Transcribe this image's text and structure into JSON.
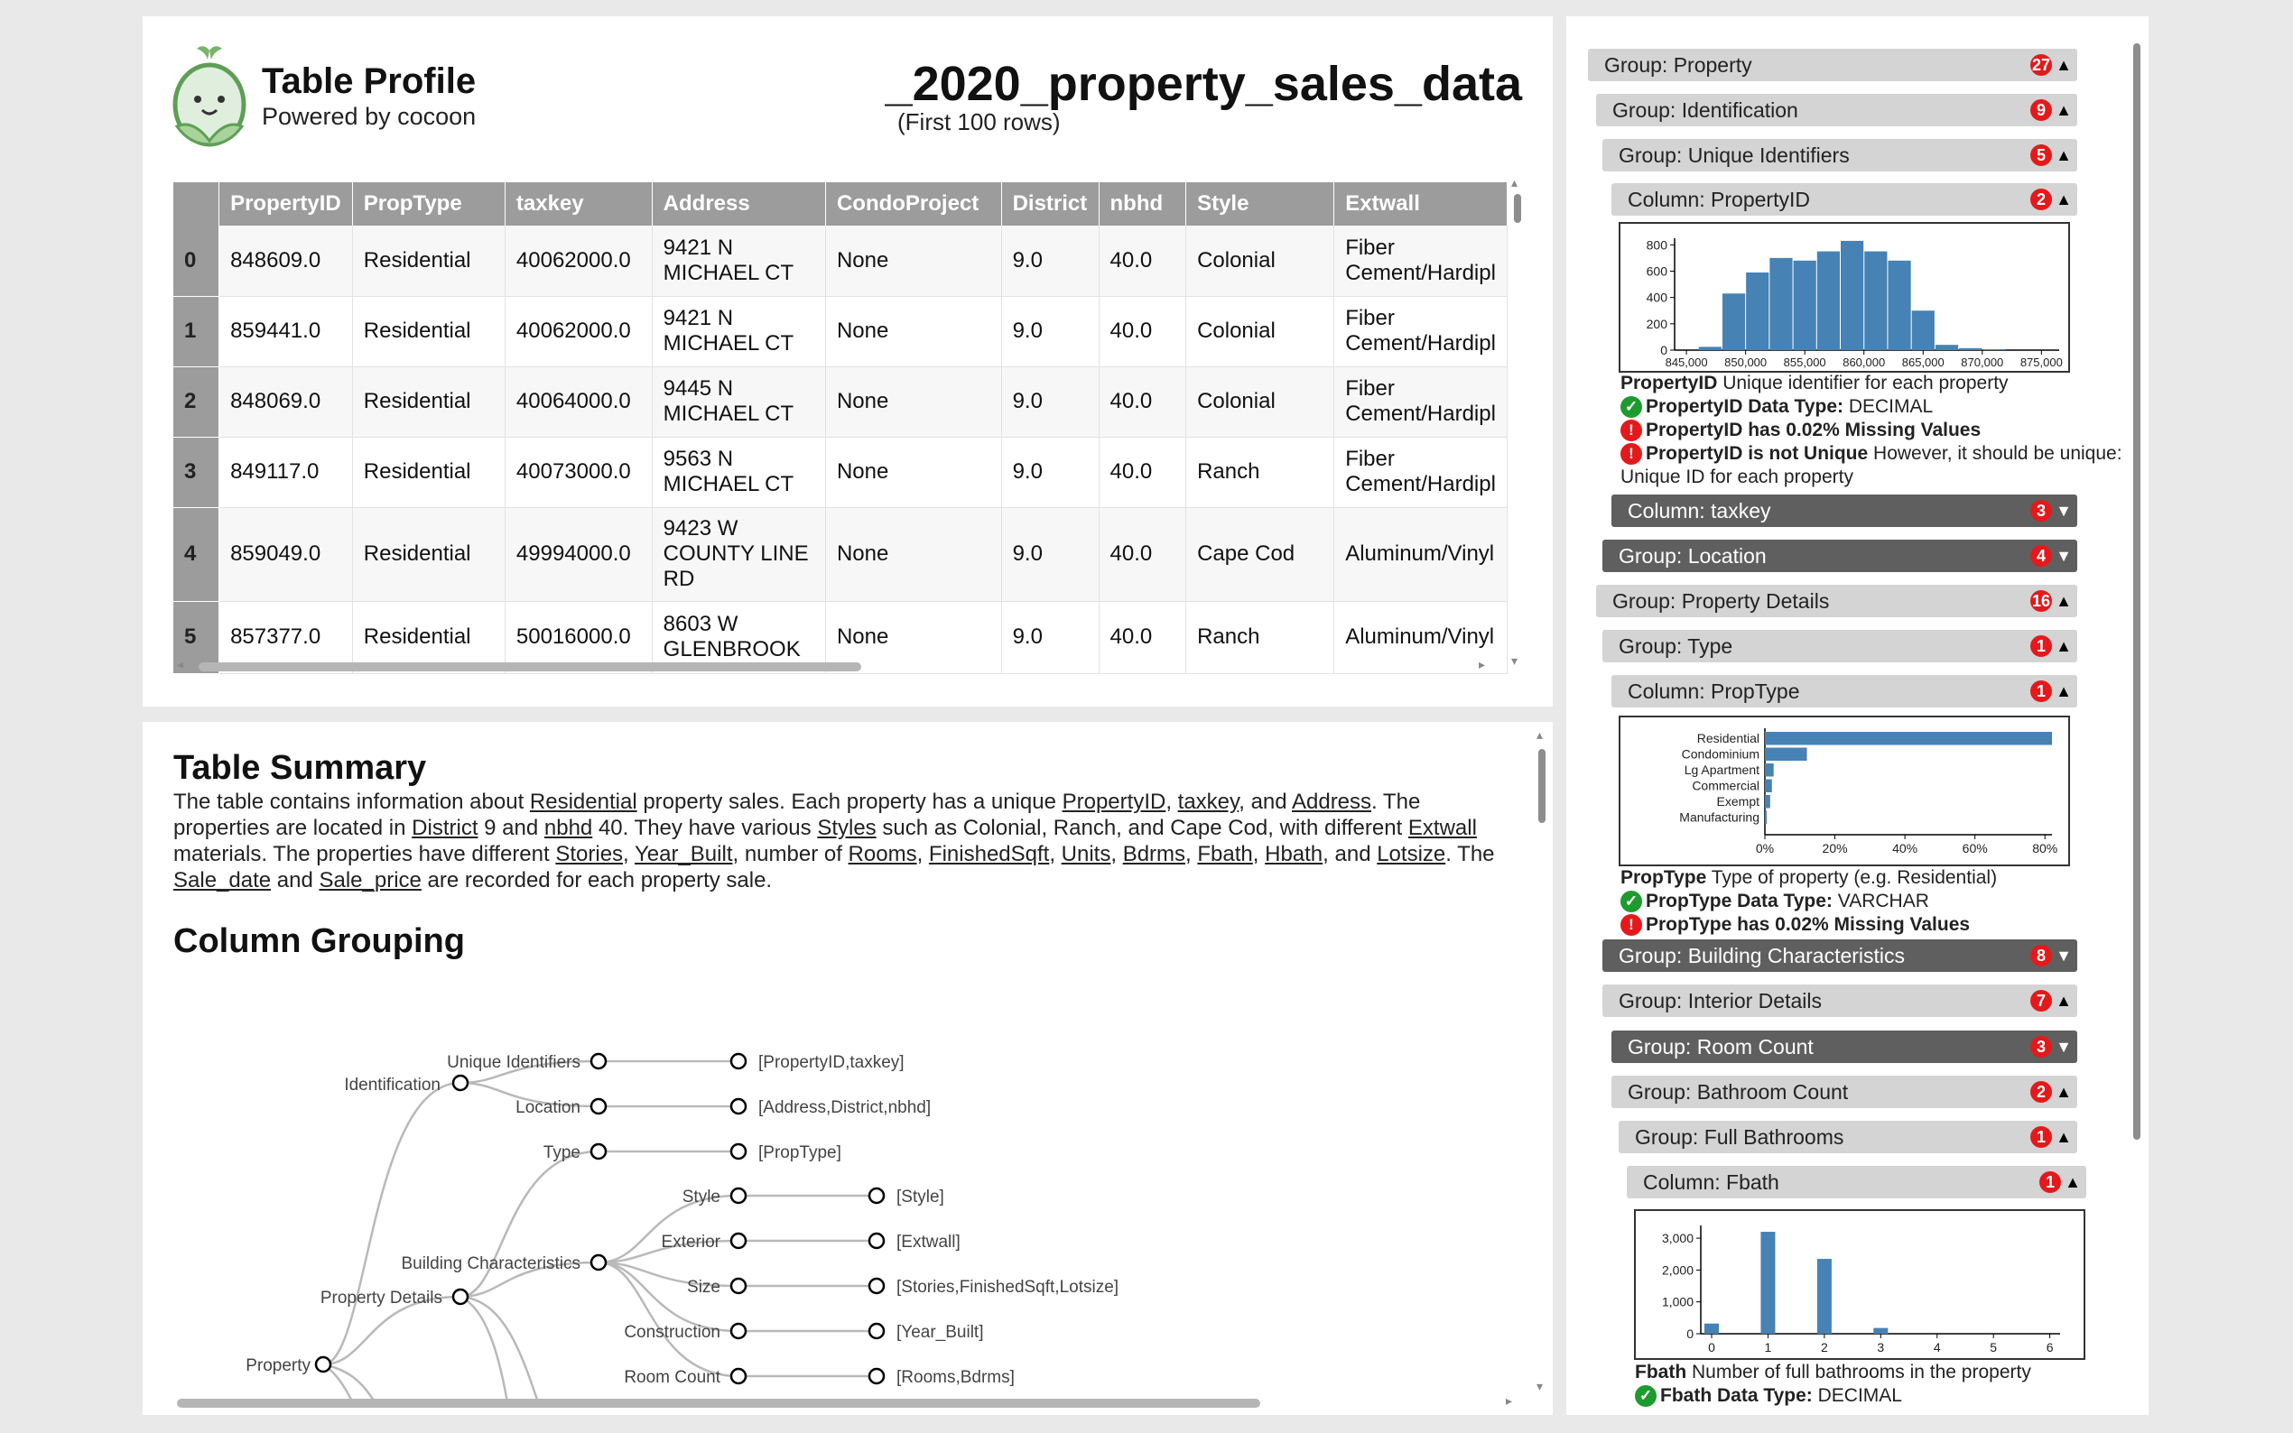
{
  "header": {
    "title": "Table Profile",
    "subtitle": "Powered by cocoon",
    "table_name": "_2020_property_sales_data",
    "row_note": "(First 100 rows)"
  },
  "table": {
    "columns": [
      "PropertyID",
      "PropType",
      "taxkey",
      "Address",
      "CondoProject",
      "District",
      "nbhd",
      "Style",
      "Extwall"
    ],
    "rows": [
      {
        "idx": "0",
        "cells": [
          "848609.0",
          "Residential",
          "40062000.0",
          "9421 N MICHAEL CT",
          "None",
          "9.0",
          "40.0",
          "Colonial",
          "Fiber Cement/Hardipl"
        ]
      },
      {
        "idx": "1",
        "cells": [
          "859441.0",
          "Residential",
          "40062000.0",
          "9421 N MICHAEL CT",
          "None",
          "9.0",
          "40.0",
          "Colonial",
          "Fiber Cement/Hardipl"
        ]
      },
      {
        "idx": "2",
        "cells": [
          "848069.0",
          "Residential",
          "40064000.0",
          "9445 N MICHAEL CT",
          "None",
          "9.0",
          "40.0",
          "Colonial",
          "Fiber Cement/Hardipl"
        ]
      },
      {
        "idx": "3",
        "cells": [
          "849117.0",
          "Residential",
          "40073000.0",
          "9563 N MICHAEL CT",
          "None",
          "9.0",
          "40.0",
          "Ranch",
          "Fiber Cement/Hardipl"
        ]
      },
      {
        "idx": "4",
        "cells": [
          "859049.0",
          "Residential",
          "49994000.0",
          "9423 W COUNTY LINE RD",
          "None",
          "9.0",
          "40.0",
          "Cape Cod",
          "Aluminum/Vinyl"
        ]
      },
      {
        "idx": "5",
        "cells": [
          "857377.0",
          "Residential",
          "50016000.0",
          "8603 W GLENBROOK",
          "None",
          "9.0",
          "40.0",
          "Ranch",
          "Aluminum/Vinyl"
        ]
      }
    ]
  },
  "summary": {
    "heading": "Table Summary",
    "parts": [
      "The table contains information about ",
      "Residential",
      " property sales. Each property has a unique ",
      "PropertyID",
      ", ",
      "taxkey",
      ", and ",
      "Address",
      ". The properties are located in ",
      "District",
      " 9 and ",
      "nbhd",
      " 40. They have various ",
      "Styles",
      " such as Colonial, Ranch, and Cape Cod, with different ",
      "Extwall",
      " materials. The properties have different ",
      "Stories",
      ", ",
      "Year_Built",
      ", number of ",
      "Rooms",
      ", ",
      "FinishedSqft",
      ", ",
      "Units",
      ", ",
      "Bdrms",
      ", ",
      "Fbath",
      ", ",
      "Hbath",
      ", and ",
      "Lotsize",
      ". The ",
      "Sale_date",
      " and ",
      "Sale_price",
      " are recorded for each property sale."
    ]
  },
  "grouping": {
    "heading": "Column Grouping",
    "nodes": {
      "property": "Property",
      "identification": "Identification",
      "property_details": "Property Details",
      "unique_identifiers": "Unique Identifiers",
      "location": "Location",
      "type": "Type",
      "building_characteristics": "Building Characteristics",
      "style": "Style",
      "exterior": "Exterior",
      "size": "Size",
      "construction": "Construction",
      "room_count": "Room Count"
    },
    "leaves": {
      "unique_identifiers": "[PropertyID,taxkey]",
      "location": "[Address,District,nbhd]",
      "type": "[PropType]",
      "style": "[Style]",
      "exterior": "[Extwall]",
      "size": "[Stories,FinishedSqft,Lotsize]",
      "construction": "[Year_Built]",
      "room_count": "[Rooms,Bdrms]"
    }
  },
  "sidebar": {
    "items": [
      {
        "label": "Group: Property",
        "badge": "27",
        "caret": "▲"
      },
      {
        "label": "Group: Identification",
        "badge": "9",
        "caret": "▲"
      },
      {
        "label": "Group: Unique Identifiers",
        "badge": "5",
        "caret": "▲"
      },
      {
        "label": "Column: PropertyID",
        "badge": "2",
        "caret": "▲"
      },
      {
        "label": "Column: taxkey",
        "badge": "3",
        "caret": "▼"
      },
      {
        "label": "Group: Location",
        "badge": "4",
        "caret": "▼"
      },
      {
        "label": "Group: Property Details",
        "badge": "16",
        "caret": "▲"
      },
      {
        "label": "Group: Type",
        "badge": "1",
        "caret": "▲"
      },
      {
        "label": "Column: PropType",
        "badge": "1",
        "caret": "▲"
      },
      {
        "label": "Group: Building Characteristics",
        "badge": "8",
        "caret": "▼"
      },
      {
        "label": "Group: Interior Details",
        "badge": "7",
        "caret": "▲"
      },
      {
        "label": "Group: Room Count",
        "badge": "3",
        "caret": "▼"
      },
      {
        "label": "Group: Bathroom Count",
        "badge": "2",
        "caret": "▲"
      },
      {
        "label": "Group: Full Bathrooms",
        "badge": "1",
        "caret": "▲"
      },
      {
        "label": "Column: Fbath",
        "badge": "1",
        "caret": "▲"
      }
    ],
    "propertyid_info": {
      "name": "PropertyID",
      "desc": " Unique identifier for each property",
      "dtype_label": "PropertyID Data Type:",
      "dtype": " DECIMAL",
      "missing": "PropertyID has 0.02% Missing Values",
      "unique_label": "PropertyID is not Unique",
      "unique_text": " However, it should be unique: Unique ID for each property"
    },
    "proptype_info": {
      "name": "PropType",
      "desc": " Type of property (e.g. Residential)",
      "dtype_label": "PropType Data Type:",
      "dtype": " VARCHAR",
      "missing": "PropType has 0.02% Missing Values"
    },
    "fbath_info": {
      "name": "Fbath",
      "desc": " Number of full bathrooms in the property",
      "dtype_label": "Fbath Data Type:",
      "dtype": " DECIMAL"
    }
  },
  "chart_data": [
    {
      "type": "bar",
      "title": "",
      "xlabel": "",
      "ylabel": "",
      "x_ticks": [
        "845,000",
        "850,000",
        "855,000",
        "860,000",
        "865,000",
        "870,000",
        "875,000"
      ],
      "y_ticks": [
        "0",
        "200",
        "400",
        "600",
        "800"
      ],
      "bins": [
        847000,
        849000,
        851000,
        853000,
        855000,
        857000,
        859000,
        861000,
        863000,
        865000,
        867000,
        869000,
        871000
      ],
      "values": [
        25,
        430,
        590,
        700,
        680,
        750,
        830,
        750,
        680,
        300,
        40,
        15,
        5
      ],
      "ylim": [
        0,
        850
      ],
      "xlim": [
        844000,
        876500
      ],
      "grid": false
    },
    {
      "type": "bar",
      "orientation": "horizontal",
      "title": "",
      "xlabel": "",
      "ylabel": "",
      "categories": [
        "Residential",
        "Condominium",
        "Lg Apartment",
        "Commercial",
        "Exempt",
        "Manufacturing"
      ],
      "values": [
        82,
        12,
        2.5,
        2,
        1.5,
        0.3
      ],
      "x_ticks": [
        "0%",
        "20%",
        "40%",
        "60%",
        "80%"
      ],
      "xlim": [
        0,
        82
      ],
      "grid": false
    },
    {
      "type": "bar",
      "title": "",
      "xlabel": "",
      "ylabel": "",
      "categories": [
        "0",
        "1",
        "2",
        "3",
        "4",
        "5",
        "6"
      ],
      "values": [
        320,
        3200,
        2350,
        180,
        0,
        0,
        0
      ],
      "y_ticks": [
        "0",
        "1,000",
        "2,000",
        "3,000"
      ],
      "ylim": [
        0,
        3400
      ],
      "grid": false
    }
  ],
  "colors": {
    "bar": "#4682b4",
    "badge": "#e5191b",
    "ok": "#1e9b2e",
    "header_bg": "#9c9c9c",
    "group_bg": "#d4d4d4",
    "group_dark": "#5f5f5f"
  },
  "icons": {
    "logo": "cocoon-sprout-logo",
    "ok": "check-icon",
    "error": "exclamation-icon"
  }
}
